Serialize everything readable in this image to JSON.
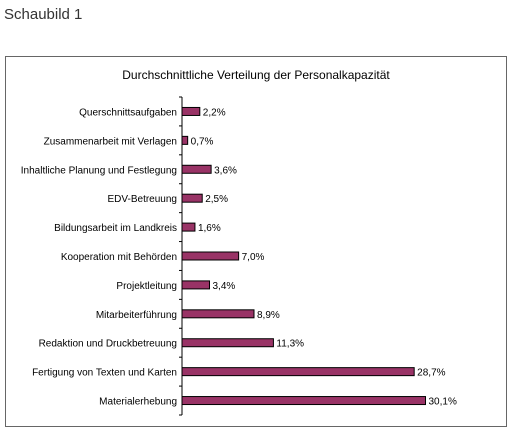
{
  "page": {
    "heading": "Schaubild 1"
  },
  "colors": {
    "bar_fill": "#993366",
    "bar_stroke": "#000000",
    "axis": "#000000",
    "frame": "#666666",
    "text": "#000000"
  },
  "chart_data": {
    "type": "bar",
    "orientation": "horizontal",
    "title": "Durchschnittliche Verteilung der Personalkapazität",
    "grid": false,
    "legend": "none",
    "xlim": [
      0,
      32
    ],
    "categories": [
      "Querschnittsaufgaben",
      "Zusammenarbeit mit Verlagen",
      "Inhaltliche Planung und Festlegung",
      "EDV-Betreuung",
      "Bildungsarbeit im Landkreis",
      "Kooperation mit Behörden",
      "Projektleitung",
      "Mitarbeiterführung",
      "Redaktion und Druckbetreuung",
      "Fertigung von Texten und Karten",
      "Materialerhebung"
    ],
    "values": [
      2.2,
      0.7,
      3.6,
      2.5,
      1.6,
      7.0,
      3.4,
      8.9,
      11.3,
      28.7,
      30.1
    ],
    "data_labels": [
      "2,2%",
      "0,7%",
      "3,6%",
      "2,5%",
      "1,6%",
      "7,0%",
      "3,4%",
      "8,9%",
      "11,3%",
      "28,7%",
      "30,1%"
    ]
  }
}
